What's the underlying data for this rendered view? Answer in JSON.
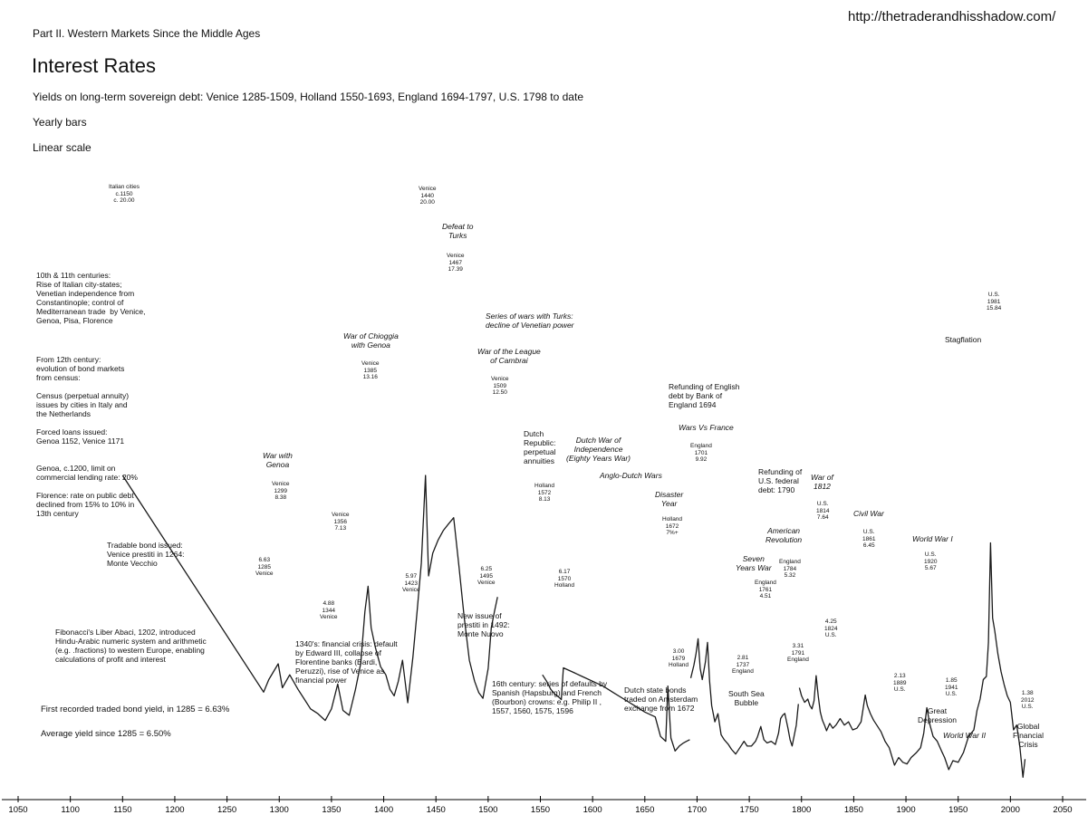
{
  "header": {
    "url": "http://thetraderandhisshadow.com/",
    "part": "Part II. Western Markets Since the Middle Ages",
    "title": "Interest Rates",
    "subtitle": "Yields on long-term sovereign debt: Venice 1285-1509, Holland 1550-1693, England 1694-1797, U.S. 1798 to date",
    "bars": "Yearly bars",
    "scale": "Linear scale"
  },
  "stats": {
    "first": "First recorded traded bond yield, in 1285  = 6.63%",
    "average": "Average yield since 1285 = 6.50%"
  },
  "notes": [
    {
      "text": "10th & 11th centuries:\nRise of Italian city-states;\nVenetian independence from\nConstantinople; control of\nMediterranean trade  by Venice,\nGenoa, Pisa, Florence",
      "italic": false
    },
    {
      "text": "From 12th century:\nevolution of bond markets\nfrom census:",
      "italic": false
    },
    {
      "text": "Census (perpetual annuity)\nissues by cities in Italy and\nthe Netherlands",
      "italic": false
    },
    {
      "text": "Forced loans issued:\nGenoa 1152, Venice 1171",
      "italic": false
    },
    {
      "text": "Genoa, c.1200, limit on\ncommercial lending rate: 20%",
      "italic": false
    },
    {
      "text": "Florence: rate on public debt\ndeclined from 15% to 10% in\n13th century",
      "italic": false
    },
    {
      "text": "Tradable bond issued:\nVenice prestiti in 1264:\nMonte Vecchio",
      "italic": false
    },
    {
      "text": "Fibonacci's Liber Abaci, 1202, introduced\nHindu-Arabic numeric system and arithmetic\n(e.g. .fractions) to western Europe, enabling\ncalculations of profit and interest",
      "italic": false
    },
    {
      "text": "1340's: financial crisis: default\nby Edward III, collapse of\nFlorentine banks (Bardi,\nPeruzzi), rise of Venice as\nfinancial power",
      "italic": false
    },
    {
      "text": "War with\nGenoa",
      "italic": true
    },
    {
      "text": "War of Chioggia\nwith Genoa",
      "italic": true
    },
    {
      "text": "Defeat to\nTurks",
      "italic": true
    },
    {
      "text": "Series of wars with Turks:\ndecline of Venetian power",
      "italic": true
    },
    {
      "text": "War of the League\nof Cambrai",
      "italic": true
    },
    {
      "text": "New issue of\nprestiti in 1492:\nMonte Nuovo",
      "italic": false
    },
    {
      "text": "Dutch\nRepublic:\nperpetual\nannuities",
      "italic": false
    },
    {
      "text": "Dutch War of\nIndependence\n(Eighty Years War)",
      "italic": true
    },
    {
      "text": "Anglo-Dutch Wars",
      "italic": true
    },
    {
      "text": "Disaster\nYear",
      "italic": true
    },
    {
      "text": "16th century: series of defaults by\nSpanish (Hapsburg) and French\n(Bourbon) crowns: e.g. Philip II ,\n1557, 1560, 1575, 1596",
      "italic": false
    },
    {
      "text": "Dutch state bonds\ntraded on Amsterdam\nexchange from 1672",
      "italic": false
    },
    {
      "text": "Refunding of English\ndebt by Bank of\nEngland 1694",
      "italic": false
    },
    {
      "text": "Wars Vs France",
      "italic": true
    },
    {
      "text": "Refunding of\nU.S. federal\ndebt: 1790",
      "italic": false
    },
    {
      "text": "War of\n1812",
      "italic": true
    },
    {
      "text": "American\nRevolution",
      "italic": true
    },
    {
      "text": "Seven\nYears War",
      "italic": true
    },
    {
      "text": "South Sea\nBubble",
      "italic": false
    },
    {
      "text": "Civil War",
      "italic": true
    },
    {
      "text": "World War I",
      "italic": true
    },
    {
      "text": "Great\nDepression",
      "italic": false
    },
    {
      "text": "World War II",
      "italic": true
    },
    {
      "text": "Stagflation",
      "italic": false
    },
    {
      "text": "Global\nFinancial\nCrisis",
      "italic": false
    }
  ],
  "point_labels": [
    "Italian cities\nc.1150\nc. 20.00",
    "Venice\n1440\n20.00",
    "Venice\n1467\n17.39",
    "Venice\n1509\n12.50",
    "Venice\n1385\n13.16",
    "Venice\n1299\n8.38",
    "6.63\n1285\nVenice",
    "Venice\n1356\n7.13",
    "4.88\n1344\nVenice",
    "5.97\n1423\nVenice",
    "6.25\n1495\nVenice",
    "Holland\n1572\n8.13",
    "6.17\n1570\nHolland",
    "Holland\n1672\n7%+",
    "3.00\n1679\nHolland",
    "England\n1701\n9.92",
    "2.81\n1737\nEngland",
    "England\n1761\n4.51",
    "England\n1784\n5.32",
    "3.31\n1791\nEngland",
    "U.S.\n1814\n7.64",
    "4.25\n1824\nU.S.",
    "U.S.\n1861\n6.45",
    "2.13\n1889\nU.S.",
    "U.S.\n1920\n5.67",
    "1.85\n1941\nU.S.",
    "U.S.\n1981\n15.84",
    "1.38\n2012\nU.S."
  ],
  "chart_data": {
    "type": "line",
    "title": "Interest Rates",
    "xlabel": "",
    "ylabel": "",
    "xlim": [
      1050,
      2050
    ],
    "ylim": [
      0,
      22
    ],
    "x_ticks": [
      1050,
      1100,
      1150,
      1200,
      1250,
      1300,
      1350,
      1400,
      1450,
      1500,
      1550,
      1600,
      1650,
      1700,
      1750,
      1800,
      1850,
      1900,
      1950,
      2000,
      2050
    ],
    "grid": false,
    "series": [
      {
        "segment": "Italian cities to Venice",
        "x": [
          1150,
          1285,
          1290,
          1299,
          1303,
          1310,
          1318,
          1324,
          1330,
          1337,
          1344,
          1350,
          1356,
          1361,
          1367,
          1373,
          1378,
          1382,
          1385,
          1388,
          1392,
          1397,
          1402,
          1406,
          1410,
          1414,
          1418,
          1423,
          1428,
          1432,
          1436,
          1440,
          1443,
          1447,
          1452,
          1457,
          1462,
          1467,
          1472,
          1477,
          1482,
          1487,
          1491,
          1495,
          1500,
          1503,
          1506,
          1509
        ],
        "values": [
          20.0,
          6.63,
          7.4,
          8.38,
          6.9,
          7.7,
          6.8,
          6.2,
          5.6,
          5.3,
          4.88,
          5.6,
          7.13,
          5.5,
          5.2,
          6.8,
          8.4,
          11.6,
          13.16,
          10.6,
          9.4,
          8.2,
          7.7,
          6.8,
          6.4,
          7.3,
          8.6,
          5.97,
          8.8,
          11.6,
          14.6,
          20.0,
          13.8,
          15.2,
          16.0,
          16.6,
          17.0,
          17.39,
          14.4,
          11.3,
          8.6,
          7.3,
          6.6,
          6.25,
          8.1,
          10.6,
          11.6,
          12.5
        ]
      },
      {
        "segment": "Holland",
        "x": [
          1552,
          1556,
          1560,
          1564,
          1568,
          1570,
          1572,
          1580,
          1590,
          1600,
          1610,
          1620,
          1630,
          1640,
          1650,
          1660,
          1665,
          1670,
          1672,
          1675,
          1679,
          1683,
          1687,
          1690,
          1693
        ],
        "values": [
          7.7,
          7.3,
          6.8,
          6.5,
          6.3,
          6.17,
          8.13,
          7.9,
          7.6,
          7.3,
          7.0,
          6.6,
          6.2,
          5.8,
          5.4,
          5.1,
          3.9,
          3.6,
          7.0,
          3.8,
          3.0,
          3.3,
          3.5,
          3.6,
          3.7
        ]
      },
      {
        "segment": "England",
        "x": [
          1694,
          1697,
          1699,
          1701,
          1703,
          1705,
          1708,
          1710,
          1712,
          1714,
          1717,
          1720,
          1723,
          1726,
          1730,
          1733,
          1737,
          1741,
          1745,
          1748,
          1752,
          1756,
          1758,
          1761,
          1764,
          1767,
          1771,
          1775,
          1778,
          1780,
          1782,
          1784,
          1787,
          1789,
          1791,
          1795,
          1797
        ],
        "values": [
          7.5,
          8.3,
          9.0,
          9.92,
          8.1,
          7.4,
          8.5,
          9.7,
          7.3,
          5.8,
          4.8,
          5.3,
          4.0,
          3.7,
          3.4,
          3.1,
          2.81,
          3.2,
          3.6,
          3.3,
          3.3,
          3.6,
          3.9,
          4.51,
          3.7,
          3.5,
          3.6,
          3.4,
          4.1,
          5.0,
          5.2,
          5.32,
          4.4,
          3.7,
          3.31,
          4.6,
          5.9
        ]
      },
      {
        "segment": "U.S.",
        "x": [
          1798,
          1800,
          1803,
          1806,
          1808,
          1810,
          1812,
          1814,
          1816,
          1818,
          1820,
          1822,
          1824,
          1827,
          1830,
          1833,
          1837,
          1841,
          1845,
          1849,
          1853,
          1857,
          1861,
          1863,
          1866,
          1869,
          1872,
          1876,
          1880,
          1884,
          1889,
          1893,
          1897,
          1901,
          1905,
          1910,
          1914,
          1917,
          1920,
          1923,
          1926,
          1930,
          1934,
          1937,
          1941,
          1945,
          1950,
          1955,
          1960,
          1965,
          1968,
          1971,
          1974,
          1977,
          1979,
          1981,
          1983,
          1985,
          1988,
          1991,
          1994,
          1997,
          2000,
          2003,
          2006,
          2009,
          2012,
          2014
        ],
        "values": [
          6.9,
          6.4,
          6.0,
          6.2,
          5.8,
          5.6,
          6.1,
          7.64,
          6.4,
          5.4,
          4.9,
          4.6,
          4.25,
          4.7,
          4.4,
          4.6,
          5.0,
          4.6,
          4.8,
          4.3,
          4.4,
          4.8,
          6.45,
          5.8,
          5.3,
          4.9,
          4.6,
          4.2,
          3.6,
          3.2,
          2.13,
          2.6,
          2.3,
          2.2,
          2.6,
          2.9,
          3.2,
          4.1,
          5.67,
          4.6,
          3.9,
          3.6,
          3.0,
          2.6,
          1.85,
          2.4,
          2.3,
          2.9,
          3.9,
          4.3,
          5.5,
          6.2,
          7.4,
          7.6,
          9.7,
          15.84,
          11.2,
          10.4,
          9.0,
          7.9,
          7.1,
          6.4,
          6.0,
          4.3,
          4.6,
          3.3,
          1.38,
          2.5
        ]
      }
    ]
  }
}
